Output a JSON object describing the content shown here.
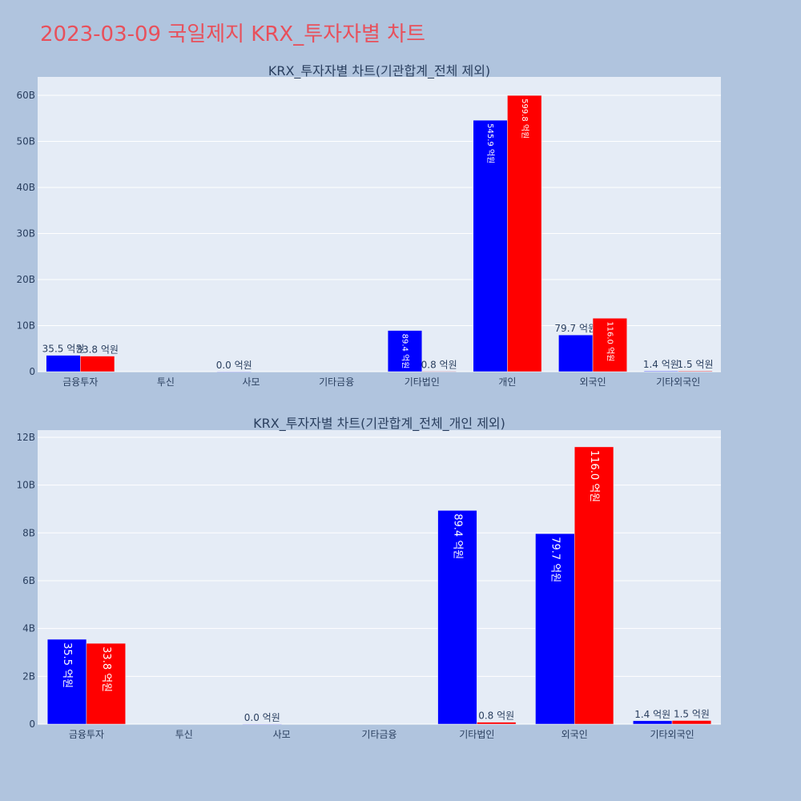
{
  "page": {
    "title": "2023-03-09 국일제지 KRX_투자자별 차트",
    "title_color": "#e8505b",
    "background": "#b0c4de",
    "plot_background": "#e5ecf6"
  },
  "chart_data": [
    {
      "type": "bar",
      "title": "KRX_투자자별 차트(기관합계_전체 제외)",
      "categories": [
        "금융투자",
        "투신",
        "사모",
        "기타금융",
        "기타법인",
        "개인",
        "외국인",
        "기타외국인"
      ],
      "series": [
        {
          "color": "#0000ff",
          "values": [
            3.55,
            null,
            0.0,
            null,
            8.94,
            54.59,
            7.97,
            0.14
          ],
          "labels": [
            "35.5 억원",
            "",
            "0.0 억원",
            "",
            "89.4 억원",
            "545.9 억원",
            "79.7 억원",
            "1.4 억원"
          ]
        },
        {
          "color": "#ff0000",
          "values": [
            3.38,
            null,
            null,
            null,
            0.08,
            59.98,
            11.6,
            0.15
          ],
          "labels": [
            "33.8 억원",
            "",
            "",
            "",
            "0.8 억원",
            "599.8 억원",
            "116.0 억원",
            "1.5 억원"
          ]
        }
      ],
      "yticks": [
        "0",
        "10B",
        "20B",
        "30B",
        "40B",
        "50B",
        "60B"
      ],
      "ytick_values": [
        0,
        10,
        20,
        30,
        40,
        50,
        60
      ],
      "ylim": [
        0,
        64
      ],
      "grid": true
    },
    {
      "type": "bar",
      "title": "KRX_투자자별 차트(기관합계_전체_개인 제외)",
      "categories": [
        "금융투자",
        "투신",
        "사모",
        "기타금융",
        "기타법인",
        "외국인",
        "기타외국인"
      ],
      "series": [
        {
          "color": "#0000ff",
          "values": [
            3.55,
            null,
            0.0,
            null,
            8.94,
            7.97,
            0.14
          ],
          "labels": [
            "35.5 억원",
            "",
            "0.0 억원",
            "",
            "89.4 억원",
            "79.7 억원",
            "1.4 억원"
          ]
        },
        {
          "color": "#ff0000",
          "values": [
            3.38,
            null,
            null,
            null,
            0.08,
            11.6,
            0.15
          ],
          "labels": [
            "33.8 억원",
            "",
            "",
            "",
            "0.8 억원",
            "116.0 억원",
            "1.5 억원"
          ]
        }
      ],
      "yticks": [
        "0",
        "2B",
        "4B",
        "6B",
        "8B",
        "10B",
        "12B"
      ],
      "ytick_values": [
        0,
        2,
        4,
        6,
        8,
        10,
        12
      ],
      "ylim": [
        0,
        12.3
      ],
      "grid": true
    }
  ]
}
